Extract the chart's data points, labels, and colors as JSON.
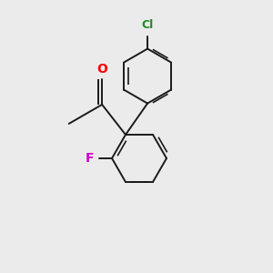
{
  "background_color": "#ebebeb",
  "bond_color": "#1a1a1a",
  "atom_colors": {
    "O": "#ff0000",
    "F": "#cc00cc",
    "Cl": "#228b22"
  },
  "figsize": [
    3.0,
    3.0
  ],
  "dpi": 100,
  "lw": 1.4,
  "lw_inner": 1.2,
  "ring_r": 0.3,
  "xlim": [
    0.0,
    3.0
  ],
  "ylim": [
    0.0,
    3.0
  ]
}
